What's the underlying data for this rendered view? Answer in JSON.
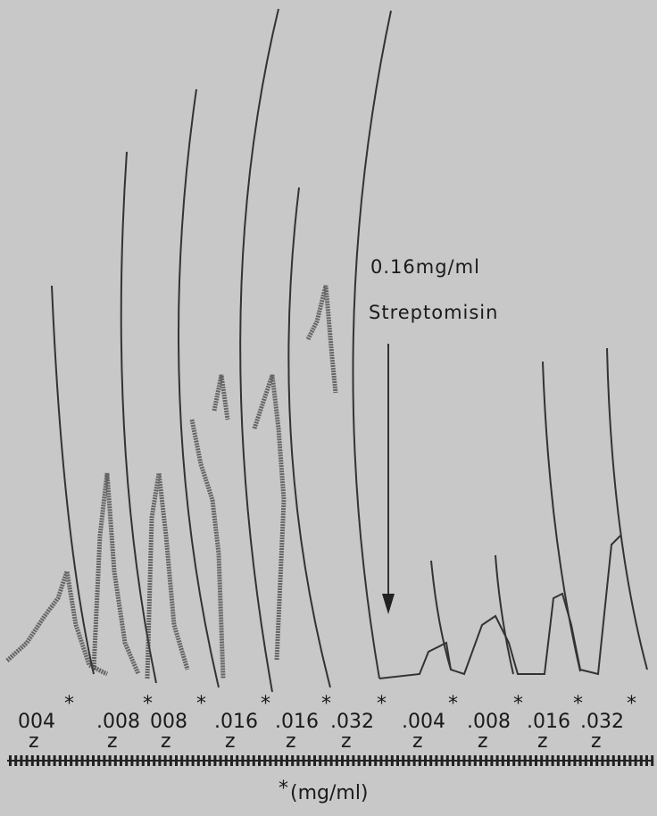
{
  "annotation": {
    "dose": "0.16mg/ml",
    "drug": "Streptomisin"
  },
  "doses": [
    {
      "text": "004",
      "mark": "*",
      "sub": "z"
    },
    {
      "text": ".008",
      "mark": "*",
      "sub": "z"
    },
    {
      "text": "008",
      "mark": "*",
      "sub": "z"
    },
    {
      "text": ".016",
      "mark": "*",
      "sub": "z"
    },
    {
      "text": ".016",
      "mark": "*",
      "sub": "z"
    },
    {
      "text": ".032",
      "mark": "*",
      "sub": "z"
    },
    {
      "text": ".004",
      "mark": "*",
      "sub": "z"
    },
    {
      "text": ".008",
      "mark": "*",
      "sub": "z"
    },
    {
      "text": ".016",
      "mark": "*",
      "sub": "z"
    },
    {
      "text": ".032",
      "mark": "*",
      "sub": "z"
    }
  ],
  "footnote": {
    "mark": "*",
    "text": "(mg/ml)"
  }
}
